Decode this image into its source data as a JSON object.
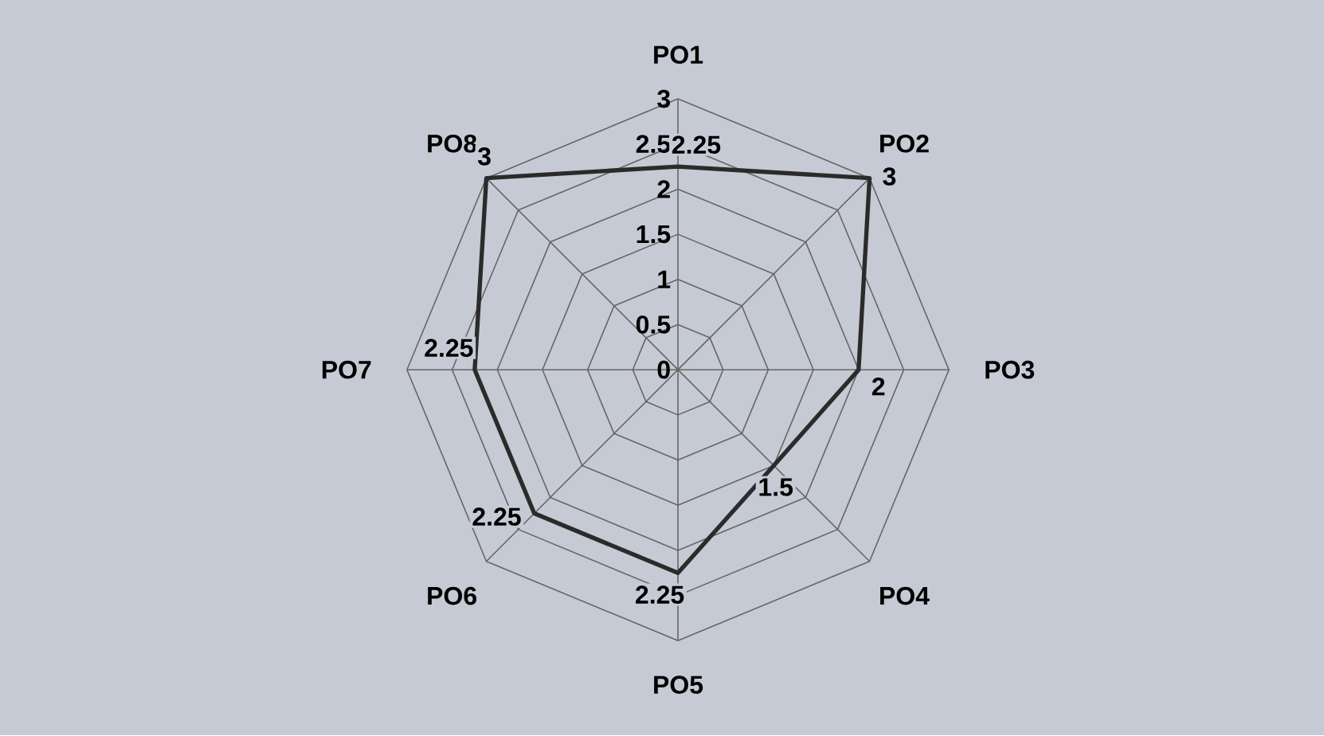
{
  "chart_data": {
    "type": "radar",
    "categories": [
      "PO1",
      "PO2",
      "PO3",
      "PO4",
      "PO5",
      "PO6",
      "PO7",
      "PO8"
    ],
    "series": [
      {
        "color": "#2b2b2b",
        "values": [
          2.25,
          3,
          2,
          1.5,
          2.25,
          2.25,
          2.25,
          3
        ]
      }
    ],
    "ylim": [
      0,
      3
    ],
    "yticks": [
      0,
      0.5,
      1,
      1.5,
      2,
      2.5,
      3
    ],
    "grid": true,
    "data_labels": true
  }
}
